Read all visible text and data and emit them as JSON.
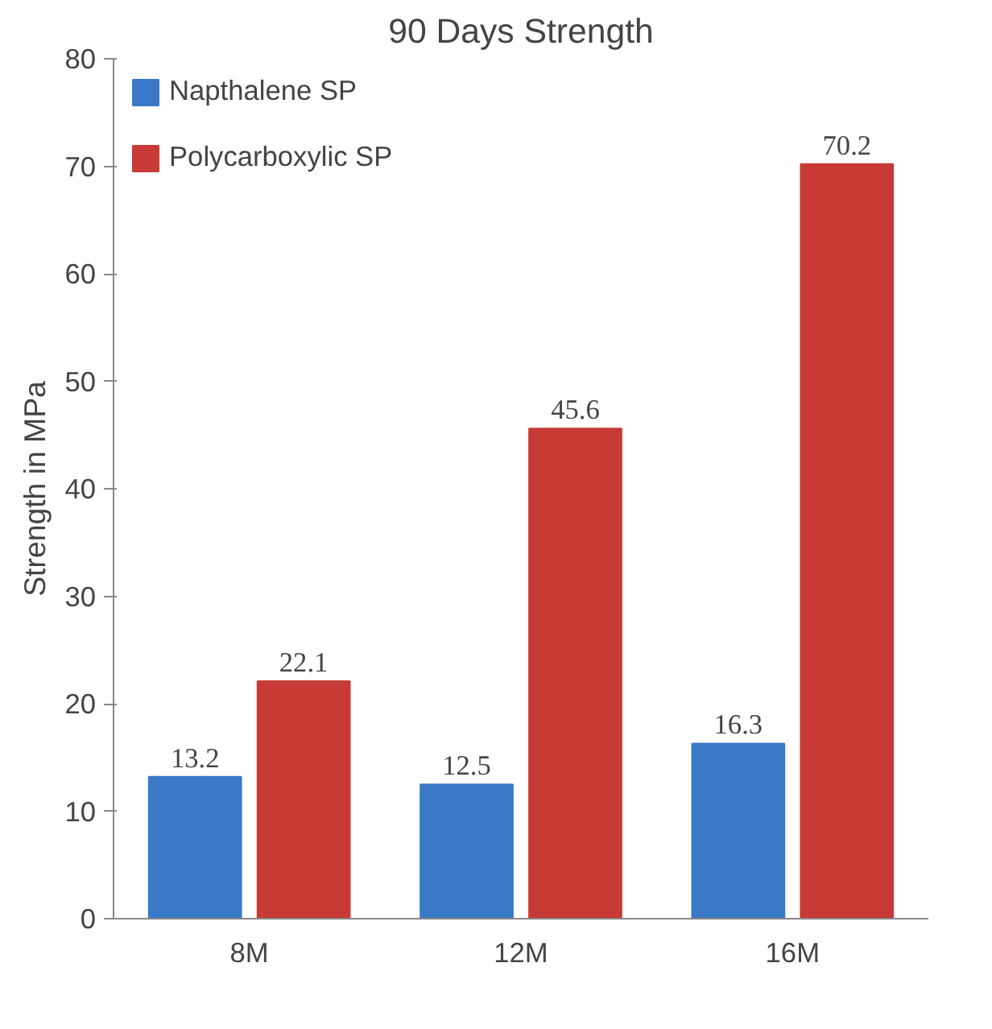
{
  "chart_data": {
    "type": "bar",
    "title": "90 Days Strength",
    "ylabel": "Strength in MPa",
    "categories": [
      "8M",
      "12M",
      "16M"
    ],
    "series": [
      {
        "name": "Napthalene SP",
        "color": "#3a78c8",
        "values": [
          13.2,
          12.5,
          16.3
        ]
      },
      {
        "name": "Polycarboxylic SP",
        "color": "#c83a36",
        "values": [
          22.1,
          45.6,
          70.2
        ]
      }
    ],
    "ylim": [
      0,
      80
    ],
    "yticks": [
      0,
      10,
      20,
      30,
      40,
      50,
      60,
      70,
      80
    ],
    "grid": false,
    "legend": "top left",
    "data_labels": true
  }
}
